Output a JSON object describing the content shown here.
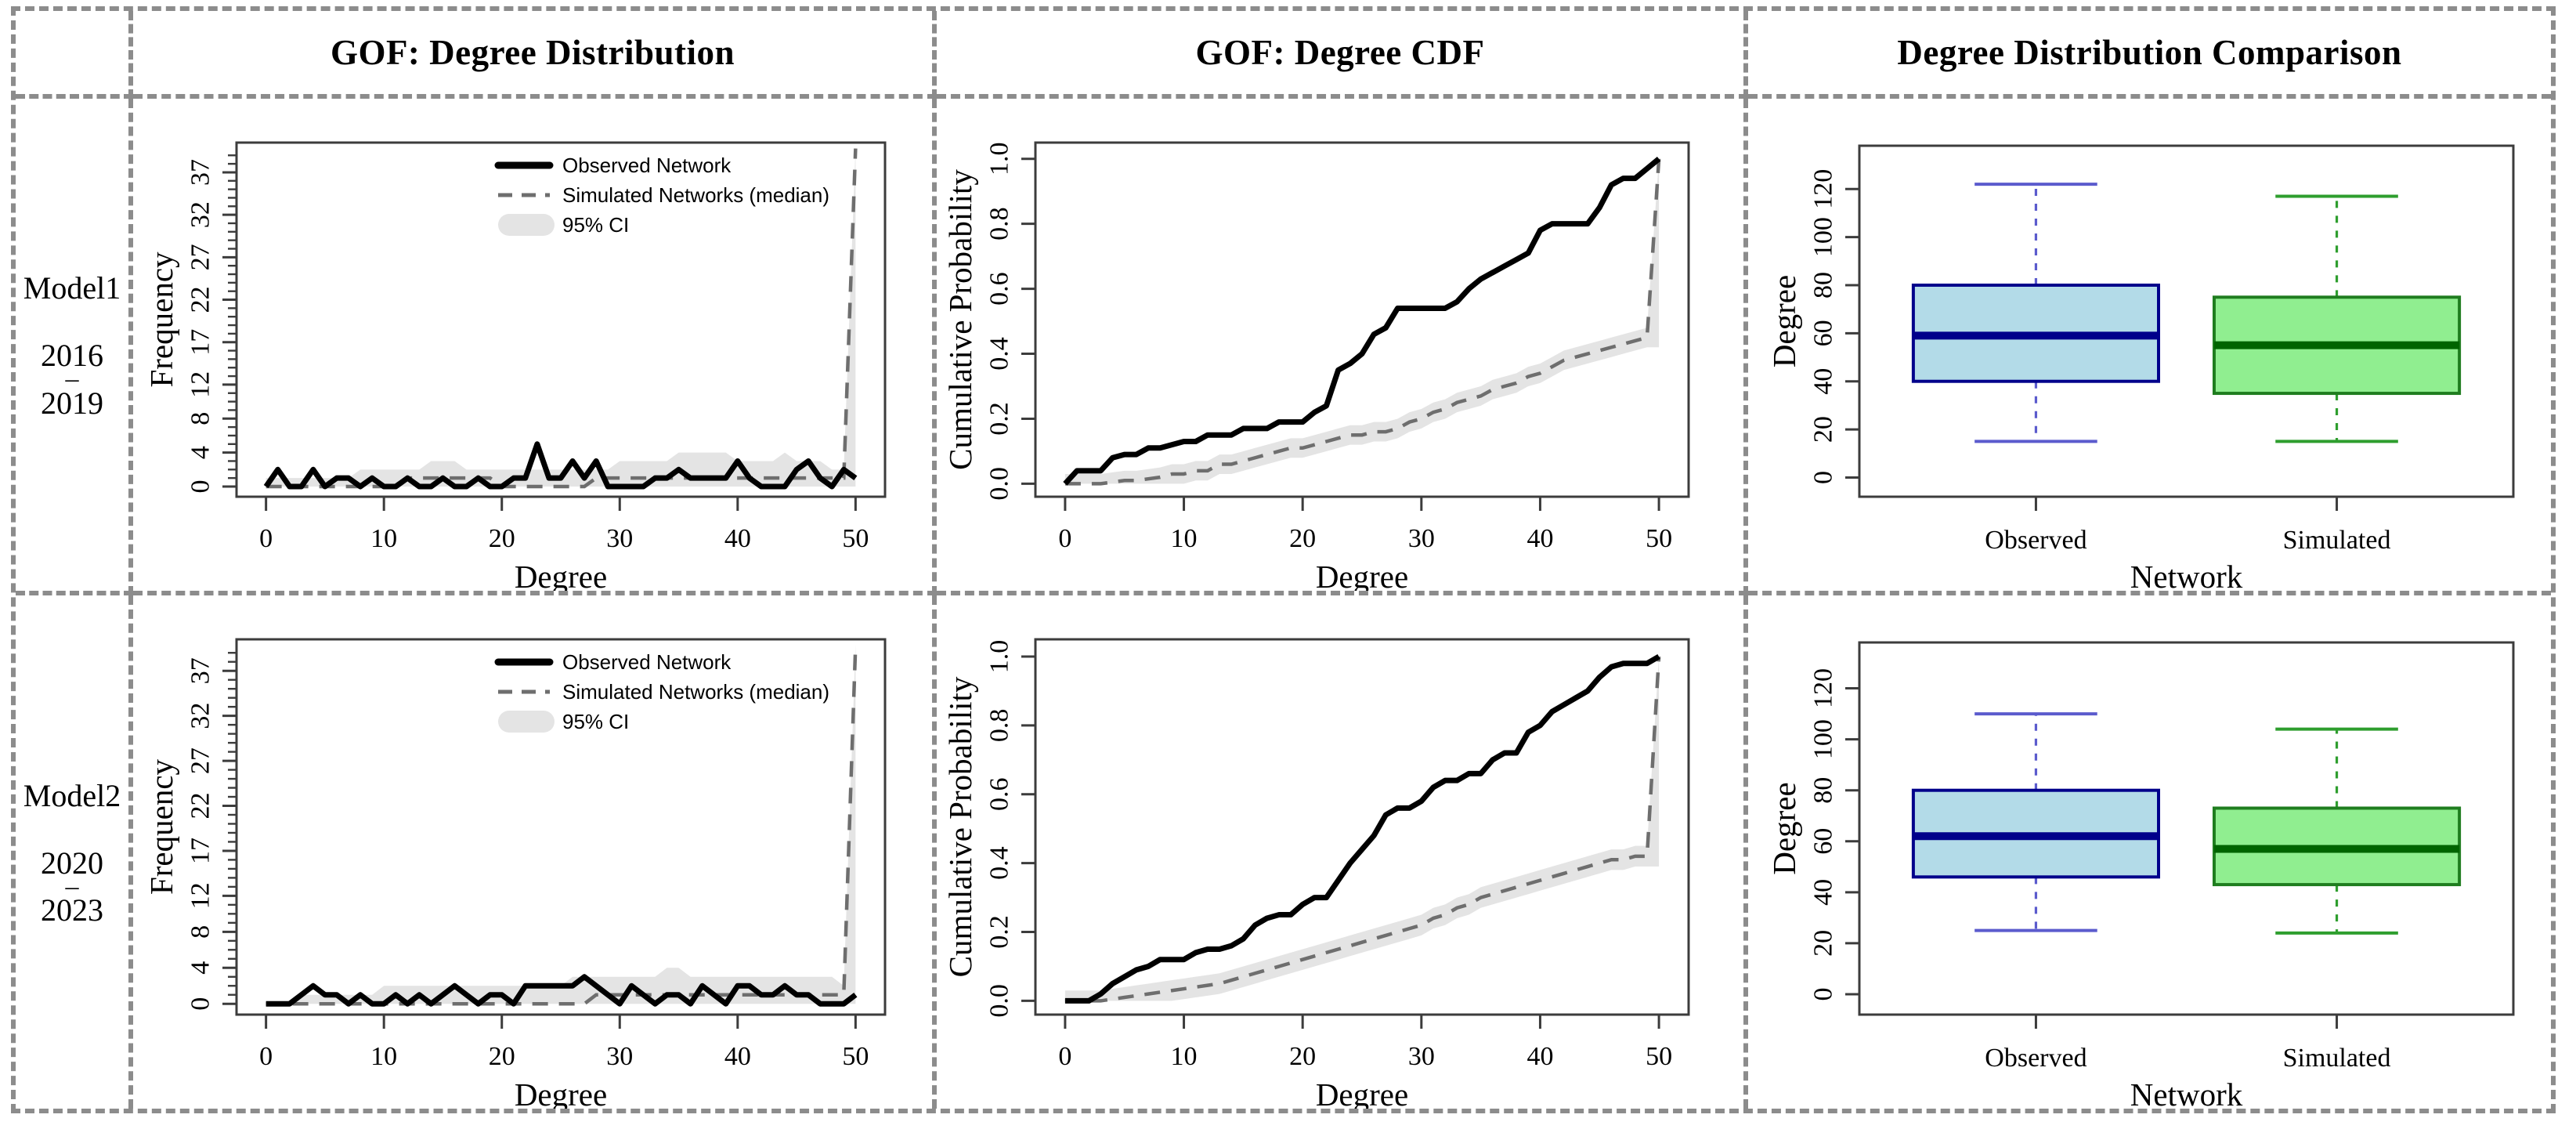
{
  "figure": {
    "headers": [
      "GOF: Degree Distribution",
      "GOF: Degree CDF",
      "Degree Distribution Comparison"
    ],
    "row_labels": [
      {
        "model": "Model1",
        "start": "2016",
        "dash": "–",
        "end": "2019"
      },
      {
        "model": "Model2",
        "start": "2020",
        "dash": "–",
        "end": "2023"
      }
    ]
  },
  "colors": {
    "observed_line": "#000000",
    "simulated_line": "#6e6e6e",
    "ci_band": "#e4e4e4",
    "panel_border": "#3c3c3c",
    "grid_border": "#8c8c8c"
  },
  "chart_data": [
    {
      "id": "model1-degree-distribution",
      "type": "line",
      "subtype": "gof_distribution",
      "row": "Model1 2016–2019",
      "title": "",
      "xlabel": "Degree",
      "ylabel": "Frequency",
      "x_note": "x = degree, integers 0..50",
      "xlim": [
        -2.5,
        52.5
      ],
      "ylim": [
        -1.2,
        40.5
      ],
      "x_ticks": [
        0,
        10,
        20,
        30,
        40,
        50
      ],
      "y_ticks": [
        0,
        4,
        8,
        12,
        17,
        22,
        27,
        32,
        37
      ],
      "y_minor_max": 39,
      "margins": {
        "l": 132,
        "r": 60,
        "t": 56,
        "b": 120
      },
      "legend": [
        {
          "label": "Observed Network",
          "kind": "solid"
        },
        {
          "label": "Simulated Networks (median)",
          "kind": "dashed"
        },
        {
          "label": "95% CI",
          "kind": "band"
        }
      ],
      "series": [
        {
          "name": "Observed Network",
          "values": [
            0,
            2,
            0,
            0,
            2,
            0,
            1,
            1,
            0,
            1,
            0,
            0,
            1,
            0,
            0,
            1,
            0,
            0,
            1,
            0,
            0,
            1,
            1,
            5,
            1,
            1,
            3,
            1,
            3,
            0,
            0,
            0,
            0,
            1,
            1,
            2,
            1,
            1,
            1,
            1,
            3,
            1,
            0,
            0,
            0,
            2,
            3,
            1,
            0,
            2,
            1
          ]
        },
        {
          "name": "Simulated Networks (median)",
          "values": [
            0,
            0,
            0,
            0,
            0,
            0,
            0,
            0,
            0,
            0,
            0,
            0,
            1,
            1,
            1,
            1,
            1,
            1,
            1,
            1,
            0,
            0,
            0,
            0,
            0,
            0,
            0,
            0,
            1,
            1,
            1,
            1,
            1,
            1,
            1,
            1,
            1,
            1,
            1,
            1,
            1,
            1,
            1,
            1,
            1,
            1,
            1,
            1,
            1,
            1,
            39.8
          ]
        }
      ],
      "ci_upper": [
        1,
        1,
        1,
        1,
        1,
        1,
        1,
        1,
        2,
        2,
        2,
        2,
        2,
        2,
        3,
        3,
        3,
        2,
        2,
        2,
        2,
        2,
        2,
        2,
        2,
        2,
        2,
        2,
        2,
        2,
        3,
        3,
        3,
        3,
        3,
        4,
        4,
        4,
        4,
        4,
        3,
        3,
        3,
        3,
        4,
        3,
        3,
        3,
        2,
        2,
        40
      ],
      "ci_lower": 0
    },
    {
      "id": "model1-degree-cdf",
      "type": "line",
      "subtype": "gof_cdf",
      "row": "Model1 2016–2019",
      "title": "",
      "xlabel": "Degree",
      "ylabel": "Cumulative Probability",
      "x_note": "x = degree, integers 0..50",
      "xlim": [
        -2.5,
        52.5
      ],
      "ylim": [
        -0.04,
        1.05
      ],
      "x_ticks": [
        0,
        10,
        20,
        30,
        40,
        50
      ],
      "y_ticks": [
        0.0,
        0.2,
        0.4,
        0.6,
        0.8,
        1.0
      ],
      "y_fmt": "1dp",
      "margins": {
        "l": 126,
        "r": 70,
        "t": 56,
        "b": 120
      },
      "series": [
        {
          "name": "Observed Network",
          "values": [
            0.0,
            0.04,
            0.04,
            0.04,
            0.08,
            0.09,
            0.09,
            0.11,
            0.11,
            0.12,
            0.13,
            0.13,
            0.15,
            0.15,
            0.15,
            0.17,
            0.17,
            0.17,
            0.19,
            0.19,
            0.19,
            0.22,
            0.24,
            0.35,
            0.37,
            0.4,
            0.46,
            0.48,
            0.54,
            0.54,
            0.54,
            0.54,
            0.54,
            0.56,
            0.6,
            0.63,
            0.65,
            0.67,
            0.69,
            0.71,
            0.78,
            0.8,
            0.8,
            0.8,
            0.8,
            0.85,
            0.92,
            0.94,
            0.94,
            0.97,
            1.0
          ]
        },
        {
          "name": "Simulated Networks (median)",
          "values": [
            0,
            0,
            0,
            0,
            0.005,
            0.01,
            0.01,
            0.015,
            0.02,
            0.03,
            0.03,
            0.04,
            0.04,
            0.06,
            0.06,
            0.07,
            0.08,
            0.09,
            0.1,
            0.11,
            0.11,
            0.12,
            0.13,
            0.14,
            0.15,
            0.15,
            0.16,
            0.16,
            0.17,
            0.19,
            0.2,
            0.22,
            0.23,
            0.25,
            0.26,
            0.27,
            0.29,
            0.3,
            0.31,
            0.33,
            0.34,
            0.36,
            0.38,
            0.39,
            0.4,
            0.41,
            0.42,
            0.43,
            0.44,
            0.45,
            1.0
          ]
        }
      ],
      "ci_halfwidth": 0.03
    },
    {
      "id": "model1-degree-comparison",
      "type": "boxplot",
      "row": "Model1 2016–2019",
      "title": "",
      "xlabel": "Network",
      "ylabel": "Degree",
      "categories": [
        "Observed",
        "Simulated"
      ],
      "ylim": [
        -8,
        138
      ],
      "y_ticks": [
        0,
        20,
        40,
        60,
        80,
        100,
        120
      ],
      "margins": {
        "l": 142,
        "r": 48,
        "t": 60,
        "b": 120
      },
      "boxes": [
        {
          "label": "Observed",
          "whisker_low": 15,
          "q1": 40,
          "median": 59,
          "q3": 80,
          "whisker_high": 122,
          "fill": "#b3dbe8",
          "stroke": "#00008b",
          "median_color": "#00008b",
          "whisker_color": "#5b5bcd"
        },
        {
          "label": "Simulated",
          "whisker_low": 15,
          "q1": 35,
          "median": 55,
          "q3": 75,
          "whisker_high": 117,
          "fill": "#90ee90",
          "stroke": "#1f7d1f",
          "median_color": "#006400",
          "whisker_color": "#2e9e2e"
        }
      ]
    },
    {
      "id": "model2-degree-distribution",
      "type": "line",
      "subtype": "gof_distribution",
      "row": "Model2 2020–2023",
      "title": "",
      "xlabel": "Degree",
      "ylabel": "Frequency",
      "x_note": "x = degree, integers 0..50",
      "xlim": [
        -2.5,
        52.5
      ],
      "ylim": [
        -1.2,
        40.5
      ],
      "x_ticks": [
        0,
        10,
        20,
        30,
        40,
        50
      ],
      "y_ticks": [
        0,
        4,
        8,
        12,
        17,
        22,
        27,
        32,
        37
      ],
      "y_minor_max": 39,
      "margins": {
        "l": 132,
        "r": 60,
        "t": 56,
        "b": 120
      },
      "legend": [
        {
          "label": "Observed Network",
          "kind": "solid"
        },
        {
          "label": "Simulated Networks (median)",
          "kind": "dashed"
        },
        {
          "label": "95% CI",
          "kind": "band"
        }
      ],
      "series": [
        {
          "name": "Observed Network",
          "values": [
            0,
            0,
            0,
            1,
            2,
            1,
            1,
            0,
            1,
            0,
            0,
            1,
            0,
            1,
            0,
            1,
            2,
            1,
            0,
            1,
            1,
            0,
            2,
            2,
            2,
            2,
            2,
            3,
            2,
            1,
            0,
            2,
            1,
            0,
            1,
            1,
            0,
            2,
            1,
            0,
            2,
            2,
            1,
            1,
            2,
            1,
            1,
            0,
            0,
            0,
            1
          ]
        },
        {
          "name": "Simulated Networks (median)",
          "values": [
            0,
            0,
            0,
            0,
            0,
            0,
            0,
            0,
            0,
            0,
            0,
            0,
            0,
            0,
            0,
            0,
            0,
            0,
            0,
            0,
            0,
            0,
            0,
            0,
            0,
            0,
            0,
            0,
            1,
            1,
            1,
            1,
            1,
            1,
            1,
            1,
            1,
            1,
            1,
            1,
            1,
            1,
            1,
            1,
            1,
            1,
            1,
            1,
            1,
            1,
            39.8
          ]
        }
      ],
      "ci_upper": [
        0,
        0,
        0,
        1,
        1,
        1,
        1,
        1,
        1,
        1,
        2,
        2,
        2,
        2,
        2,
        2,
        2,
        2,
        2,
        2,
        2,
        2,
        2,
        2,
        2,
        2,
        3,
        3,
        3,
        3,
        3,
        3,
        3,
        3,
        4,
        4,
        3,
        3,
        3,
        3,
        3,
        3,
        3,
        3,
        3,
        3,
        3,
        3,
        3,
        2,
        40
      ],
      "ci_lower": 0
    },
    {
      "id": "model2-degree-cdf",
      "type": "line",
      "subtype": "gof_cdf",
      "row": "Model2 2020–2023",
      "title": "",
      "xlabel": "Degree",
      "ylabel": "Cumulative Probability",
      "x_note": "x = degree, integers 0..50",
      "xlim": [
        -2.5,
        52.5
      ],
      "ylim": [
        -0.04,
        1.05
      ],
      "x_ticks": [
        0,
        10,
        20,
        30,
        40,
        50
      ],
      "y_ticks": [
        0.0,
        0.2,
        0.4,
        0.6,
        0.8,
        1.0
      ],
      "y_fmt": "1dp",
      "margins": {
        "l": 126,
        "r": 70,
        "t": 56,
        "b": 120
      },
      "series": [
        {
          "name": "Observed Network",
          "values": [
            0,
            0,
            0,
            0.02,
            0.05,
            0.07,
            0.09,
            0.1,
            0.12,
            0.12,
            0.12,
            0.14,
            0.15,
            0.15,
            0.16,
            0.18,
            0.22,
            0.24,
            0.25,
            0.25,
            0.28,
            0.3,
            0.3,
            0.35,
            0.4,
            0.44,
            0.48,
            0.54,
            0.56,
            0.56,
            0.58,
            0.62,
            0.64,
            0.64,
            0.66,
            0.66,
            0.7,
            0.72,
            0.72,
            0.78,
            0.8,
            0.84,
            0.86,
            0.88,
            0.9,
            0.94,
            0.97,
            0.98,
            0.98,
            0.98,
            1.0
          ]
        },
        {
          "name": "Simulated Networks (median)",
          "values": [
            0,
            0,
            0,
            0,
            0.005,
            0.01,
            0.015,
            0.02,
            0.025,
            0.03,
            0.035,
            0.04,
            0.045,
            0.05,
            0.06,
            0.07,
            0.08,
            0.09,
            0.1,
            0.11,
            0.12,
            0.13,
            0.14,
            0.15,
            0.16,
            0.17,
            0.18,
            0.19,
            0.2,
            0.21,
            0.22,
            0.24,
            0.25,
            0.27,
            0.28,
            0.3,
            0.31,
            0.32,
            0.33,
            0.34,
            0.35,
            0.36,
            0.37,
            0.38,
            0.39,
            0.4,
            0.41,
            0.41,
            0.42,
            0.42,
            1.0
          ]
        }
      ],
      "ci_halfwidth": 0.03
    },
    {
      "id": "model2-degree-comparison",
      "type": "boxplot",
      "row": "Model2 2020–2023",
      "title": "",
      "xlabel": "Network",
      "ylabel": "Degree",
      "categories": [
        "Observed",
        "Simulated"
      ],
      "ylim": [
        -8,
        138
      ],
      "y_ticks": [
        0,
        20,
        40,
        60,
        80,
        100,
        120
      ],
      "margins": {
        "l": 142,
        "r": 48,
        "t": 60,
        "b": 120
      },
      "boxes": [
        {
          "label": "Observed",
          "whisker_low": 25,
          "q1": 46,
          "median": 62,
          "q3": 80,
          "whisker_high": 110,
          "fill": "#b3dbe8",
          "stroke": "#00008b",
          "median_color": "#00008b",
          "whisker_color": "#5b5bcd"
        },
        {
          "label": "Simulated",
          "whisker_low": 24,
          "q1": 43,
          "median": 57,
          "q3": 73,
          "whisker_high": 104,
          "fill": "#90ee90",
          "stroke": "#1f7d1f",
          "median_color": "#006400",
          "whisker_color": "#2e9e2e"
        }
      ]
    }
  ]
}
